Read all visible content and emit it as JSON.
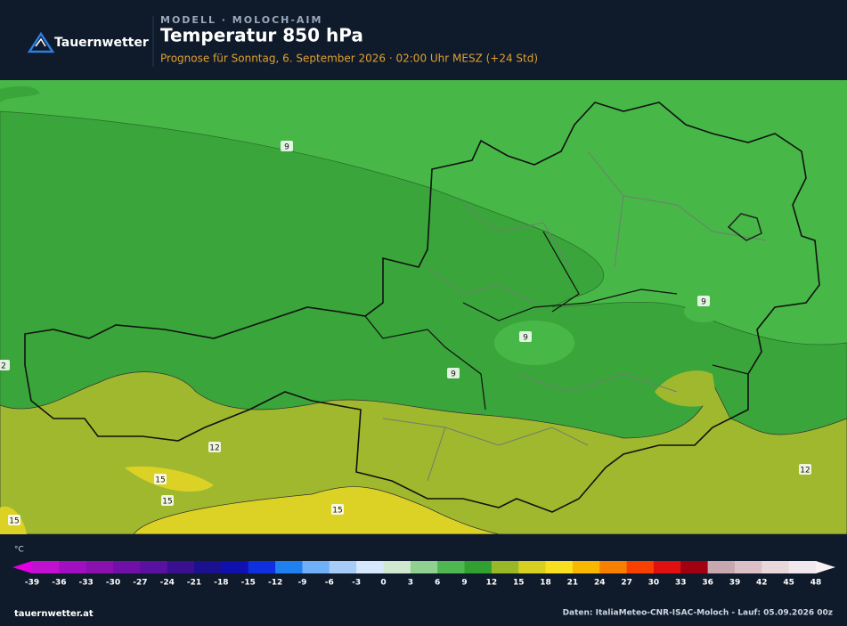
{
  "header": {
    "brand": "Tauernwetter",
    "model": "MODELL · MOLOCH-AIM",
    "title": "Temperatur 850 hPa",
    "subtitle": "Prognose für Sonntag, 6. September 2026 · 02:00 Uhr MESZ  (+24 Std)"
  },
  "map": {
    "contour_labels": [
      "9",
      "9",
      "9",
      "9",
      "2",
      "12",
      "12",
      "15",
      "15",
      "15",
      "15"
    ]
  },
  "legend": {
    "unit": "°C",
    "ticks": [
      -39,
      -36,
      -33,
      -30,
      -27,
      -24,
      -21,
      -18,
      -15,
      -12,
      -9,
      -6,
      -3,
      0,
      3,
      6,
      9,
      12,
      15,
      18,
      21,
      24,
      27,
      30,
      33,
      36,
      39,
      42,
      45,
      48
    ],
    "colors": [
      "#e000e0",
      "#c010d0",
      "#a010c0",
      "#8a10b0",
      "#7010a8",
      "#5a10a0",
      "#3a1090",
      "#1a1090",
      "#1010b0",
      "#1030e0",
      "#2080f0",
      "#70b0f8",
      "#a8ccf8",
      "#d8e8fc",
      "#d0e8d0",
      "#90d090",
      "#50b850",
      "#30a030",
      "#98b828",
      "#d8d020",
      "#f8e020",
      "#f8b800",
      "#f88000",
      "#f84000",
      "#e01010",
      "#a00010",
      "#c8a8b0",
      "#dcc0c8",
      "#e8d8dc",
      "#f0e8ec",
      "#f8f0f4"
    ]
  },
  "footer": {
    "site": "tauernwetter.at",
    "source": "Daten: ItaliaMeteo-CNR-ISAC-Moloch - Lauf: 05.09.2026 00z"
  }
}
